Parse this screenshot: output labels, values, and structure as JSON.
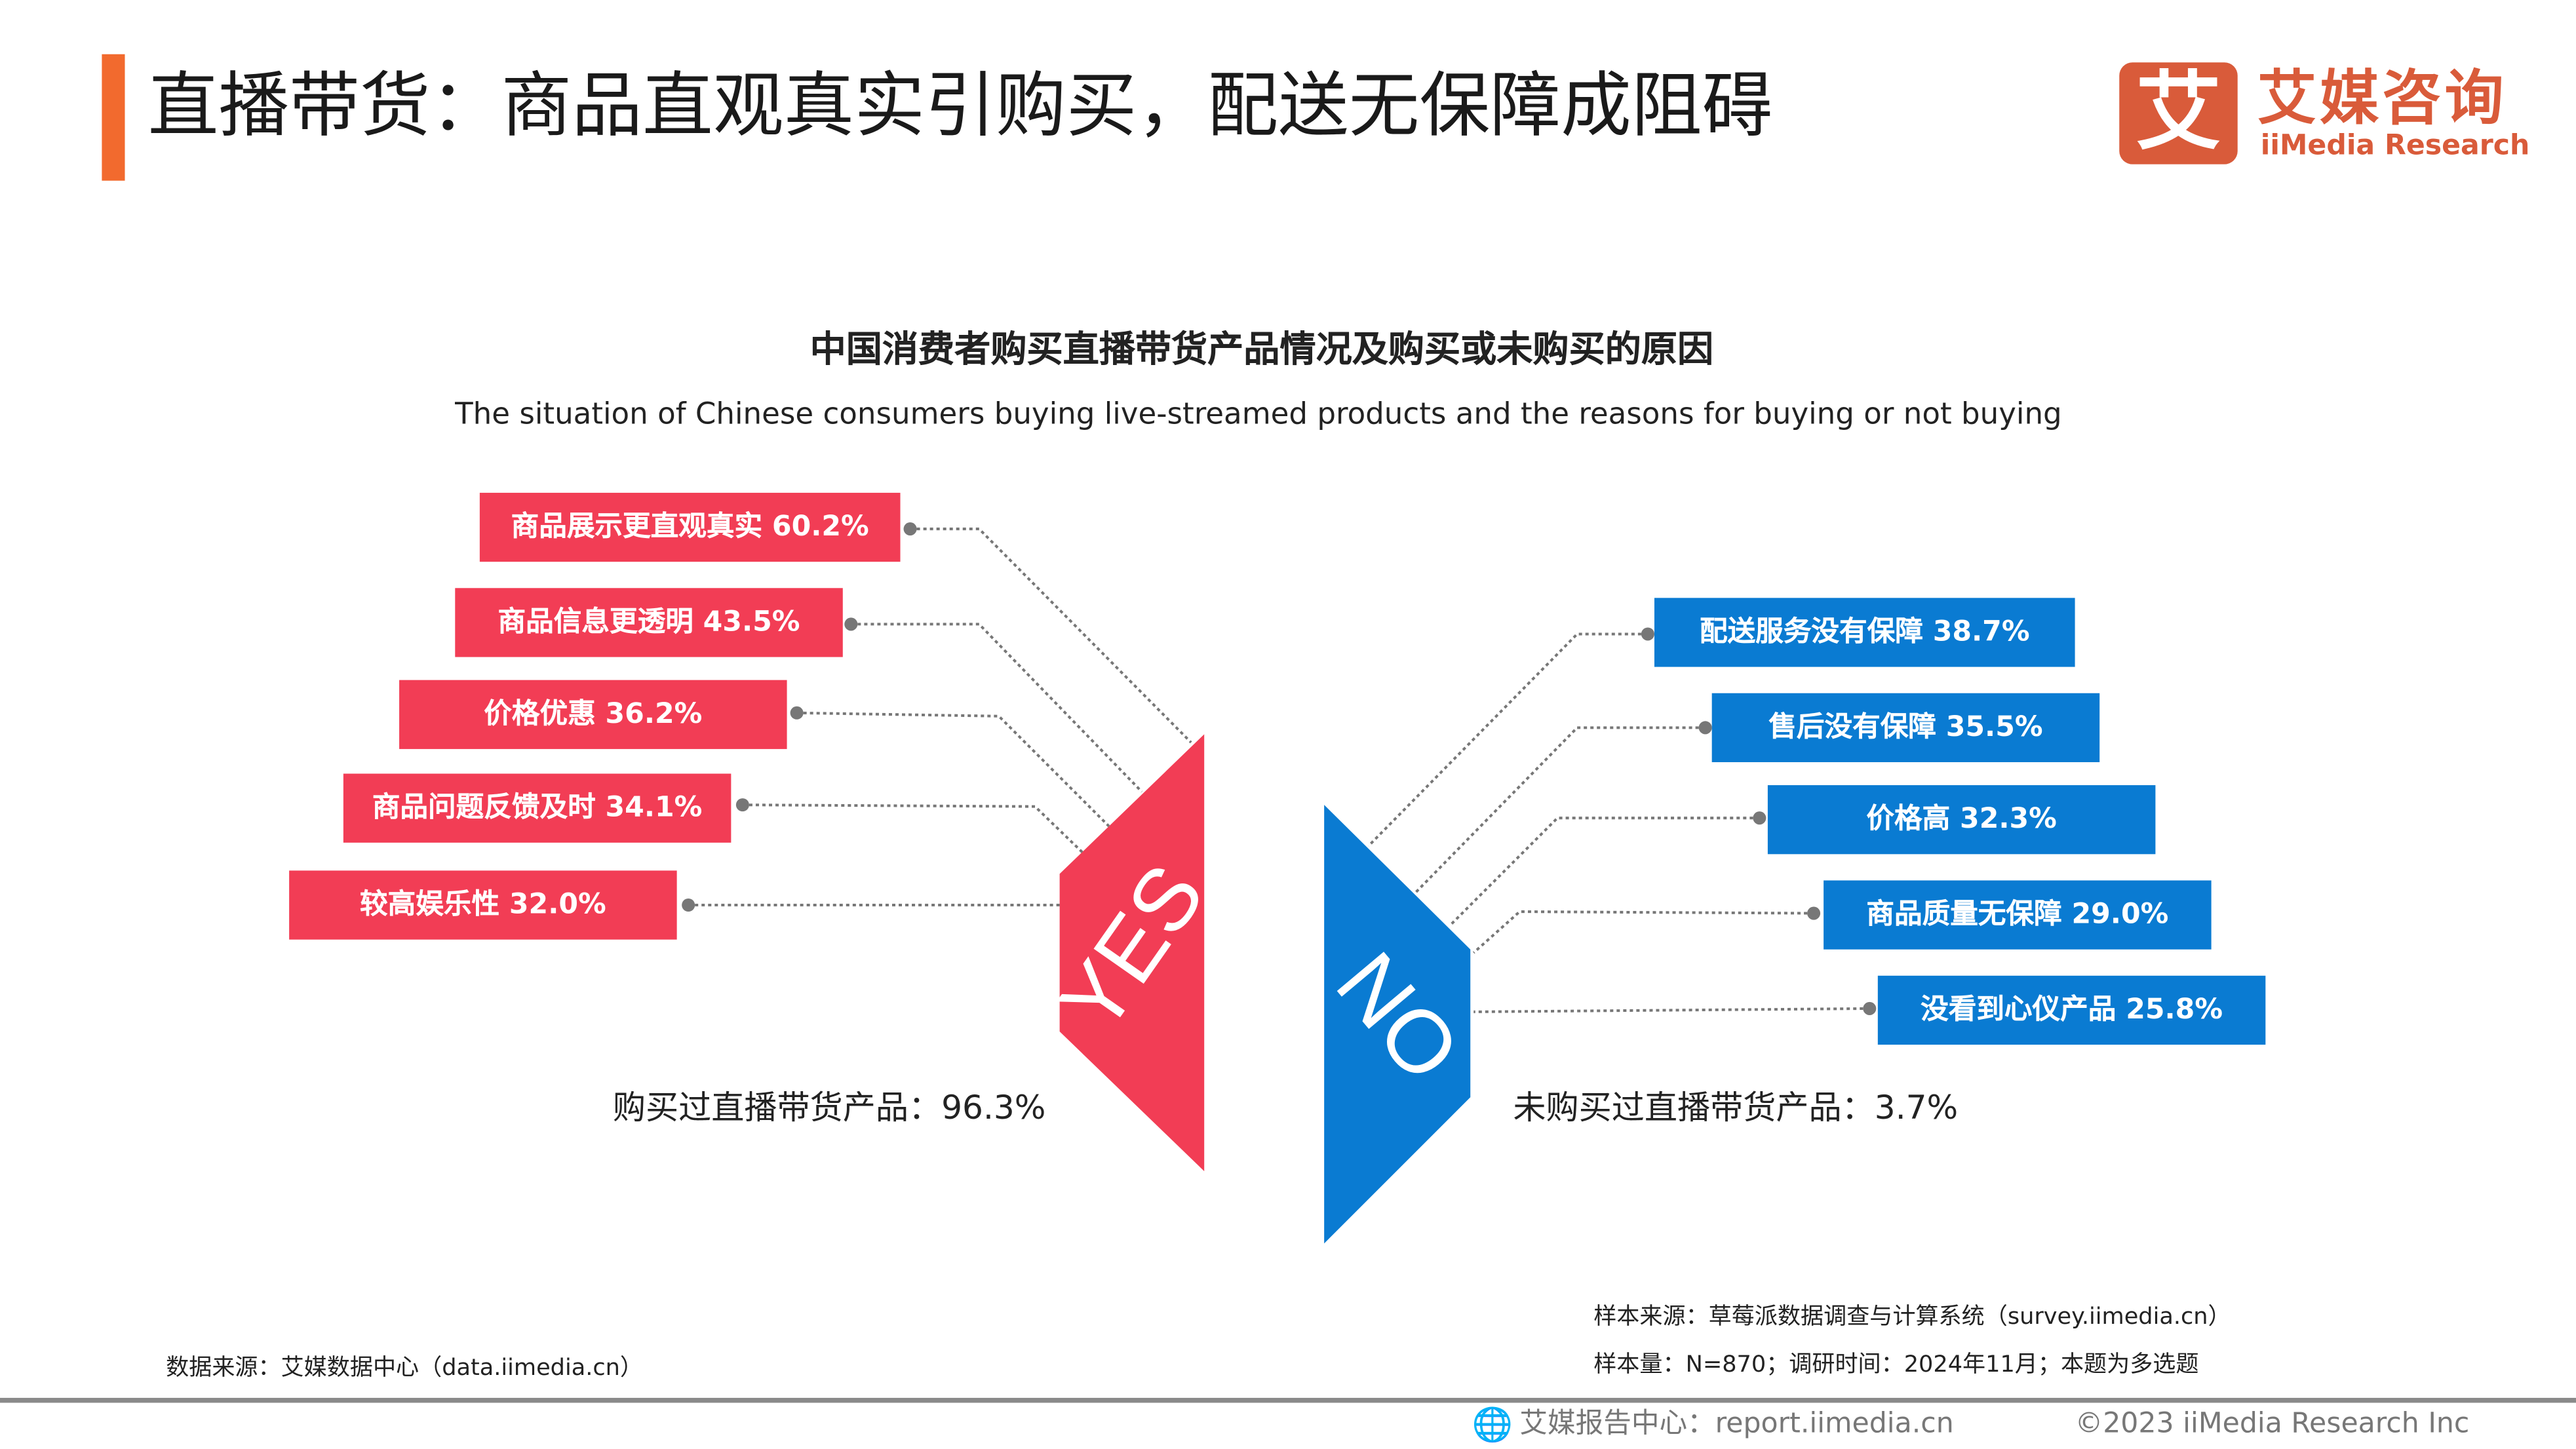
{
  "header": {
    "title": "直播带货：商品直观真实引购买，配送无保障成阻碍",
    "accent_color": "#F26A2E"
  },
  "logo": {
    "mark": "艾",
    "name_cn": "艾媒咨询",
    "name_en": "iiMedia Research",
    "color": "#D95B3A"
  },
  "chart": {
    "title": "中国消费者购买直播带货产品情况及购买或未购买的原因",
    "subtitle": "The situation of Chinese consumers buying live-streamed products and the reasons for buying or not buying",
    "yes": {
      "label": "YES",
      "summary": "购买过直播带货产品：96.3%",
      "color": "#F23D55",
      "reasons": [
        "商品展示更直观真实 60.2%",
        "商品信息更透明 43.5%",
        "价格优惠 36.2%",
        "商品问题反馈及时 34.1%",
        "较高娱乐性 32.0%"
      ]
    },
    "no": {
      "label": "NO",
      "summary": "未购买过直播带货产品：3.7%",
      "color": "#0A7BD2",
      "reasons": [
        "配送服务没有保障 38.7%",
        "售后没有保障 35.5%",
        "价格高 32.3%",
        "商品质量无保障 29.0%",
        "没看到心仪产品 25.8%"
      ]
    }
  },
  "chart_data": {
    "type": "table",
    "title": "中国消费者购买直播带货产品情况及购买或未购买的原因",
    "purchased": {
      "share": 96.3,
      "reasons": [
        {
          "name": "商品展示更直观真实",
          "value": 60.2
        },
        {
          "name": "商品信息更透明",
          "value": 43.5
        },
        {
          "name": "价格优惠",
          "value": 36.2
        },
        {
          "name": "商品问题反馈及时",
          "value": 34.1
        },
        {
          "name": "较高娱乐性",
          "value": 32.0
        }
      ]
    },
    "not_purchased": {
      "share": 3.7,
      "reasons": [
        {
          "name": "配送服务没有保障",
          "value": 38.7
        },
        {
          "name": "售后没有保障",
          "value": 35.5
        },
        {
          "name": "价格高",
          "value": 32.3
        },
        {
          "name": "商品质量无保障",
          "value": 29.0
        },
        {
          "name": "没看到心仪产品",
          "value": 25.8
        }
      ]
    }
  },
  "notes": {
    "source_sample": "样本来源：草莓派数据调查与计算系统（survey.iimedia.cn）",
    "sample_info": "样本量：N=870；调研时间：2024年11月；本题为多选题",
    "data_source": "数据来源：艾媒数据中心（data.iimedia.cn）"
  },
  "footer": {
    "report_center": "艾媒报告中心：report.iimedia.cn",
    "copyright": "©2023  iiMedia Research  Inc",
    "icon": "globe-icon"
  }
}
